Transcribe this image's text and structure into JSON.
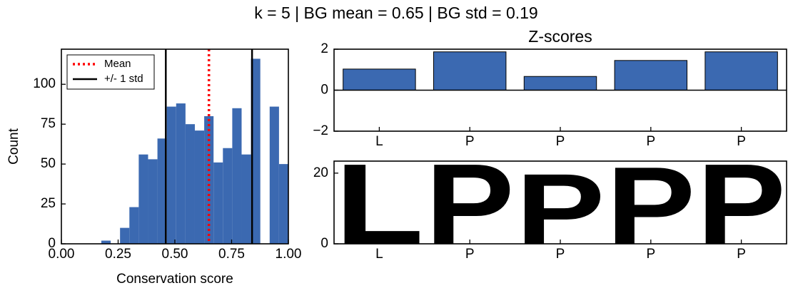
{
  "title": "k = 5 | BG mean = 0.65 | BG std = 0.19",
  "chart_data": [
    {
      "type": "histogram",
      "xlabel": "Conservation score",
      "ylabel": "Count",
      "color": "#3b69b1",
      "bins": [
        0.176,
        0.2172,
        0.2584,
        0.2996,
        0.3408,
        0.382,
        0.4232,
        0.4644,
        0.5056,
        0.5468,
        0.588,
        0.6292,
        0.6704,
        0.7116,
        0.7528,
        0.794,
        0.8352,
        0.8764,
        0.9176,
        0.9588,
        1.0
      ],
      "values": [
        2,
        0,
        10,
        23,
        56,
        53,
        66,
        86,
        88,
        75,
        71,
        80,
        51,
        60,
        85,
        56,
        116,
        0,
        86,
        50
      ],
      "lines": [
        {
          "name": "Mean",
          "color": "#ff0000",
          "style": "dotted",
          "x": [
            0.65
          ]
        },
        {
          "name": "+/- 1 std",
          "color": "#000000",
          "style": "solid",
          "x": [
            0.46,
            0.84
          ]
        }
      ],
      "legend": "upper left",
      "xlim": [
        0,
        1
      ],
      "ylim": [
        0,
        122
      ],
      "xticks": [
        {
          "value": 0,
          "label": "0.00"
        },
        {
          "value": 0.25,
          "label": "0.25"
        },
        {
          "value": 0.5,
          "label": "0.50"
        },
        {
          "value": 0.75,
          "label": "0.75"
        },
        {
          "value": 1,
          "label": "1.00"
        }
      ],
      "yticks": [
        0,
        25,
        50,
        75,
        100
      ]
    },
    {
      "type": "bar",
      "title": "Z-scores",
      "color": "#3b69b1",
      "categories": [
        "L",
        "P",
        "P",
        "P",
        "P"
      ],
      "values": [
        1.03,
        1.87,
        0.67,
        1.45,
        1.87
      ],
      "ylim": [
        -2,
        2
      ],
      "yticks": [
        {
          "value": -2,
          "label": "−2"
        },
        0,
        2
      ]
    },
    {
      "type": "logo",
      "color": "#000000",
      "categories": [
        "L",
        "P",
        "P",
        "P",
        "P"
      ],
      "values": [
        23.4,
        23.4,
        20.5,
        22.5,
        23.4
      ],
      "ylim": [
        0,
        23.4
      ],
      "yticks": [
        0,
        20
      ]
    }
  ]
}
